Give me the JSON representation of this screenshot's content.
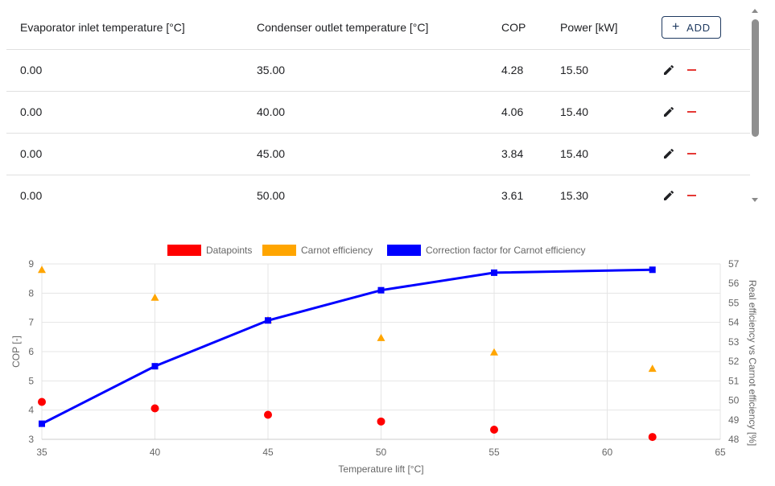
{
  "table": {
    "columns": [
      "Evaporator inlet temperature [°C]",
      "Condenser outlet temperature [°C]",
      "COP",
      "Power [kW]"
    ],
    "add_button": "ADD",
    "rows": [
      [
        "0.00",
        "35.00",
        "4.28",
        "15.50"
      ],
      [
        "0.00",
        "40.00",
        "4.06",
        "15.40"
      ],
      [
        "0.00",
        "45.00",
        "3.84",
        "15.40"
      ],
      [
        "0.00",
        "50.00",
        "3.61",
        "15.30"
      ]
    ]
  },
  "icons": {
    "edit": "pencil-icon",
    "delete": "minus-icon",
    "add": "plus-icon"
  },
  "colors": {
    "datapoints": "#ff0000",
    "carnot": "#ffa500",
    "correction": "#0000ff",
    "button": "#1f3a60",
    "delete": "#e53935"
  },
  "chart_data": {
    "type": "line",
    "xlabel": "Temperature lift  [°C]",
    "ylabel": "COP [-]",
    "y2label": "Real efficiency vs Carnot efficiency [%]",
    "xlim": [
      35,
      65
    ],
    "xticks": [
      35,
      40,
      45,
      50,
      55,
      60,
      65
    ],
    "ylim": [
      3,
      9
    ],
    "yticks": [
      3,
      4,
      5,
      6,
      7,
      8,
      9
    ],
    "y2lim": [
      48,
      57
    ],
    "y2ticks": [
      48,
      49,
      50,
      51,
      52,
      53,
      54,
      55,
      56,
      57
    ],
    "grid": true,
    "legend_position": "top-center",
    "series": [
      {
        "name": "Datapoints",
        "kind": "scatter",
        "marker": "circle",
        "axis": "y",
        "color": "#ff0000",
        "x": [
          35,
          40,
          45,
          50,
          55,
          62
        ],
        "y": [
          4.28,
          4.06,
          3.84,
          3.61,
          3.33,
          3.08
        ]
      },
      {
        "name": "Carnot efficiency",
        "kind": "scatter",
        "marker": "triangle",
        "axis": "y",
        "color": "#ffa500",
        "x": [
          35,
          40,
          45,
          50,
          55,
          62
        ],
        "y": [
          8.8,
          7.85,
          7.08,
          6.47,
          5.98,
          5.42
        ]
      },
      {
        "name": "Correction factor for Carnot efficiency",
        "kind": "line",
        "marker": "square",
        "axis": "y2",
        "color": "#0000ff",
        "x": [
          35,
          40,
          45,
          50,
          55,
          62
        ],
        "y": [
          48.8,
          51.75,
          54.1,
          55.65,
          56.55,
          56.7
        ]
      }
    ]
  }
}
